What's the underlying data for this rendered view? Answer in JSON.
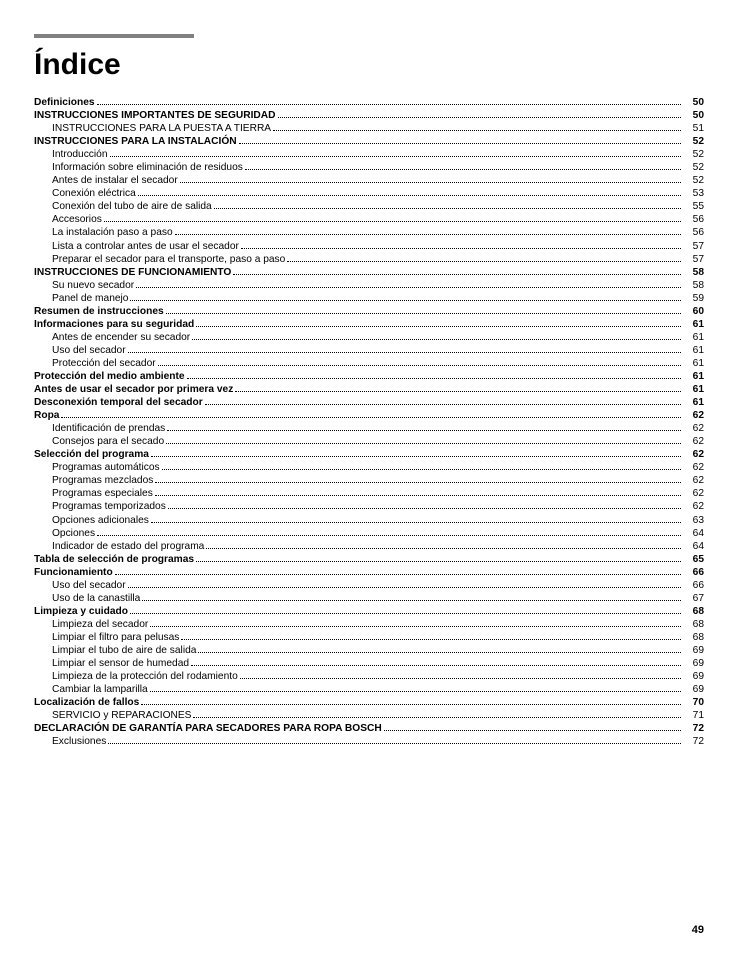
{
  "title": "Índice",
  "pageNumber": "49",
  "entries": [
    {
      "label": "Definiciones",
      "page": "50",
      "bold": true,
      "indent": 0
    },
    {
      "label": "INSTRUCCIONES IMPORTANTES DE SEGURIDAD",
      "page": "50",
      "bold": true,
      "indent": 0
    },
    {
      "label": "INSTRUCCIONES PARA LA PUESTA A TIERRA",
      "page": "51",
      "bold": false,
      "indent": 1
    },
    {
      "label": "INSTRUCCIONES PARA LA INSTALACIÓN",
      "page": "52",
      "bold": true,
      "indent": 0
    },
    {
      "label": "Introducción",
      "page": "52",
      "bold": false,
      "indent": 1
    },
    {
      "label": "Información sobre eliminación de residuos",
      "page": "52",
      "bold": false,
      "indent": 1
    },
    {
      "label": "Antes de instalar el secador",
      "page": "52",
      "bold": false,
      "indent": 1
    },
    {
      "label": "Conexión eléctrica",
      "page": "53",
      "bold": false,
      "indent": 1
    },
    {
      "label": "Conexión del tubo de aire de salida",
      "page": "55",
      "bold": false,
      "indent": 1
    },
    {
      "label": "Accesorios",
      "page": "56",
      "bold": false,
      "indent": 1
    },
    {
      "label": "La instalación paso a paso",
      "page": "56",
      "bold": false,
      "indent": 1
    },
    {
      "label": "Lista a controlar antes de usar el secador",
      "page": "57",
      "bold": false,
      "indent": 1
    },
    {
      "label": "Preparar el secador para el transporte, paso a paso",
      "page": "57",
      "bold": false,
      "indent": 1
    },
    {
      "label": "INSTRUCCIONES DE FUNCIONAMIENTO",
      "page": "58",
      "bold": true,
      "indent": 0
    },
    {
      "label": "Su nuevo secador",
      "page": "58",
      "bold": false,
      "indent": 1
    },
    {
      "label": "Panel de manejo",
      "page": "59",
      "bold": false,
      "indent": 1
    },
    {
      "label": "Resumen de instrucciones",
      "page": "60",
      "bold": true,
      "indent": 0
    },
    {
      "label": "Informaciones para su seguridad",
      "page": "61",
      "bold": true,
      "indent": 0
    },
    {
      "label": "Antes de encender su secador",
      "page": "61",
      "bold": false,
      "indent": 1
    },
    {
      "label": "Uso del secador",
      "page": "61",
      "bold": false,
      "indent": 1
    },
    {
      "label": "Protección del secador",
      "page": "61",
      "bold": false,
      "indent": 1
    },
    {
      "label": "Protección del medio ambiente",
      "page": "61",
      "bold": true,
      "indent": 0
    },
    {
      "label": "Antes de usar el secador por primera vez",
      "page": "61",
      "bold": true,
      "indent": 0
    },
    {
      "label": "Desconexión temporal del secador",
      "page": "61",
      "bold": true,
      "indent": 0
    },
    {
      "label": "Ropa",
      "page": "62",
      "bold": true,
      "indent": 0
    },
    {
      "label": "Identificación de prendas",
      "page": "62",
      "bold": false,
      "indent": 1
    },
    {
      "label": "Consejos para el secado",
      "page": "62",
      "bold": false,
      "indent": 1
    },
    {
      "label": "Selección del programa",
      "page": "62",
      "bold": true,
      "indent": 0
    },
    {
      "label": "Programas automáticos",
      "page": "62",
      "bold": false,
      "indent": 1
    },
    {
      "label": "Programas mezclados",
      "page": "62",
      "bold": false,
      "indent": 1
    },
    {
      "label": "Programas especiales",
      "page": "62",
      "bold": false,
      "indent": 1
    },
    {
      "label": "Programas temporizados",
      "page": "62",
      "bold": false,
      "indent": 1
    },
    {
      "label": "Opciones adicionales",
      "page": "63",
      "bold": false,
      "indent": 1
    },
    {
      "label": "Opciones",
      "page": "64",
      "bold": false,
      "indent": 1
    },
    {
      "label": "Indicador de estado del programa",
      "page": "64",
      "bold": false,
      "indent": 1
    },
    {
      "label": "Tabla de selección de programas",
      "page": "65",
      "bold": true,
      "indent": 0
    },
    {
      "label": "Funcionamiento",
      "page": "66",
      "bold": true,
      "indent": 0
    },
    {
      "label": "Uso del secador",
      "page": "66",
      "bold": false,
      "indent": 1
    },
    {
      "label": "Uso de la canastilla",
      "page": "67",
      "bold": false,
      "indent": 1
    },
    {
      "label": "Limpieza y cuidado",
      "page": "68",
      "bold": true,
      "indent": 0
    },
    {
      "label": "Limpieza del secador",
      "page": "68",
      "bold": false,
      "indent": 1
    },
    {
      "label": "Limpiar el filtro para pelusas",
      "page": "68",
      "bold": false,
      "indent": 1
    },
    {
      "label": "Limpiar el tubo de aire de salida",
      "page": "69",
      "bold": false,
      "indent": 1
    },
    {
      "label": "Limpiar el sensor de humedad",
      "page": "69",
      "bold": false,
      "indent": 1
    },
    {
      "label": "Limpieza de la protección del rodamiento",
      "page": "69",
      "bold": false,
      "indent": 1
    },
    {
      "label": "Cambiar la lamparilla",
      "page": "69",
      "bold": false,
      "indent": 1
    },
    {
      "label": "Localización de fallos",
      "page": "70",
      "bold": true,
      "indent": 0
    },
    {
      "label": "SERVICIO y REPARACIONES",
      "page": "71",
      "bold": false,
      "indent": 1
    },
    {
      "label": "DECLARACIÓN DE GARANTÍA PARA SECADORES PARA ROPA BOSCH",
      "page": "72",
      "bold": true,
      "indent": 0
    },
    {
      "label": "Exclusiones",
      "page": "72",
      "bold": false,
      "indent": 1
    }
  ]
}
